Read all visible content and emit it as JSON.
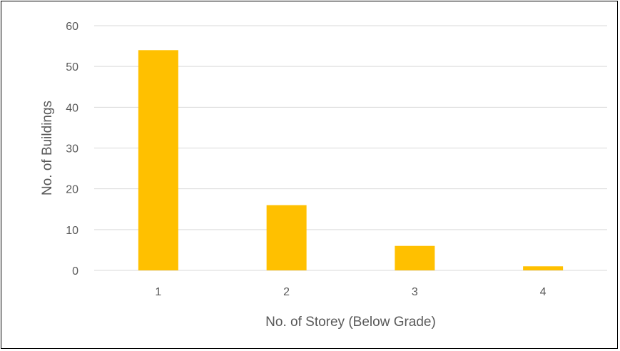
{
  "chart_data": {
    "type": "bar",
    "title": "",
    "xlabel": "No. of Storey (Below Grade)",
    "ylabel": "No. of Buildings",
    "categories": [
      "1",
      "2",
      "3",
      "4"
    ],
    "values": [
      54,
      16,
      6,
      1
    ],
    "ylim": [
      0,
      60
    ],
    "yticks": [
      "0",
      "10",
      "20",
      "30",
      "40",
      "50",
      "60"
    ],
    "grid": true,
    "legend": "none",
    "colors": {
      "bar": "#FFC000",
      "gridline": "#D9D9D9",
      "text": "#595959"
    }
  }
}
